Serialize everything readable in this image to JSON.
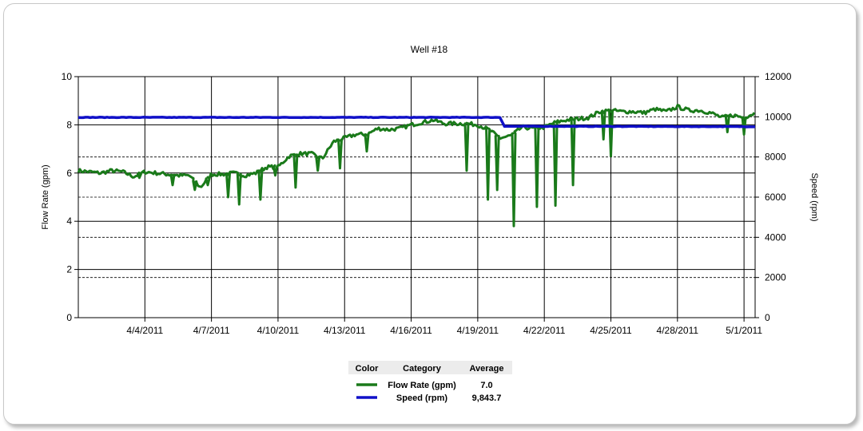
{
  "chart_data": {
    "type": "line",
    "title": "Well #18",
    "y_left": {
      "label": "Flow Rate (gpm)",
      "range": [
        0,
        10
      ],
      "ticks": [
        0,
        2,
        4,
        6,
        8,
        10
      ]
    },
    "y_right": {
      "label": "Speed (rpm)",
      "range": [
        0,
        12000
      ],
      "ticks": [
        0,
        2000,
        4000,
        6000,
        8000,
        10000,
        12000
      ],
      "tick_labels": [
        "0",
        "2000",
        "4000",
        "6000",
        "8000",
        "10000",
        "12000"
      ]
    },
    "x_axis": {
      "range": [
        "2011-04-01",
        "2011-05-01T12:00"
      ],
      "ticks": [
        "2011-04-04",
        "2011-04-07",
        "2011-04-10",
        "2011-04-13",
        "2011-04-16",
        "2011-04-19",
        "2011-04-22",
        "2011-04-25",
        "2011-04-28",
        "2011-05-01"
      ],
      "tick_labels": [
        "4/4/2011",
        "4/7/2011",
        "4/10/2011",
        "4/13/2011",
        "4/16/2011",
        "4/19/2011",
        "4/22/2011",
        "4/25/2011",
        "4/28/2011",
        "5/1/2011"
      ]
    },
    "gridlines": "solid at left-axis ticks, dashed at right-axis ticks, solid vertical at date ticks",
    "series": [
      {
        "name": "Flow Rate (gpm)",
        "axis": "left",
        "color": "#1a7a1a",
        "points": [
          [
            "2011-04-01",
            6.1
          ],
          [
            "2011-04-02",
            6.0
          ],
          [
            "2011-04-02T12:00",
            6.1
          ],
          [
            "2011-04-03",
            6.05
          ],
          [
            "2011-04-03T12:00",
            5.85
          ],
          [
            "2011-04-04",
            6.05
          ],
          [
            "2011-04-04T12:00",
            6.0
          ],
          [
            "2011-04-05",
            5.95
          ],
          [
            "2011-04-05T12:00",
            5.9
          ],
          [
            "2011-04-06",
            5.9
          ],
          [
            "2011-04-06T12:00",
            5.4
          ],
          [
            "2011-04-07",
            5.95
          ],
          [
            "2011-04-07T12:00",
            5.95
          ],
          [
            "2011-04-08",
            6.0
          ],
          [
            "2011-04-08T12:00",
            5.9
          ],
          [
            "2011-04-09",
            6.0
          ],
          [
            "2011-04-09T12:00",
            6.25
          ],
          [
            "2011-04-10",
            6.25
          ],
          [
            "2011-04-10T12:00",
            6.7
          ],
          [
            "2011-04-11",
            6.8
          ],
          [
            "2011-04-11T12:00",
            6.8
          ],
          [
            "2011-04-12",
            6.6
          ],
          [
            "2011-04-12T12:00",
            7.3
          ],
          [
            "2011-04-13",
            7.45
          ],
          [
            "2011-04-13T12:00",
            7.6
          ],
          [
            "2011-04-14",
            7.6
          ],
          [
            "2011-04-14T12:00",
            7.85
          ],
          [
            "2011-04-15",
            7.8
          ],
          [
            "2011-04-15T12:00",
            7.85
          ],
          [
            "2011-04-16",
            8.0
          ],
          [
            "2011-04-16T12:00",
            8.1
          ],
          [
            "2011-04-17",
            8.2
          ],
          [
            "2011-04-17T12:00",
            8.05
          ],
          [
            "2011-04-18",
            8.05
          ],
          [
            "2011-04-18T12:00",
            8.05
          ],
          [
            "2011-04-19",
            8.0
          ],
          [
            "2011-04-19T12:00",
            7.8
          ],
          [
            "2011-04-20",
            7.45
          ],
          [
            "2011-04-20T12:00",
            7.55
          ],
          [
            "2011-04-21",
            7.9
          ],
          [
            "2011-04-21T12:00",
            7.85
          ],
          [
            "2011-04-22",
            7.9
          ],
          [
            "2011-04-22T12:00",
            8.1
          ],
          [
            "2011-04-23",
            8.2
          ],
          [
            "2011-04-23T12:00",
            8.25
          ],
          [
            "2011-04-24",
            8.3
          ],
          [
            "2011-04-24T12:00",
            8.55
          ],
          [
            "2011-04-25",
            8.6
          ],
          [
            "2011-04-25T12:00",
            8.55
          ],
          [
            "2011-04-26",
            8.55
          ],
          [
            "2011-04-26T12:00",
            8.5
          ],
          [
            "2011-04-27",
            8.65
          ],
          [
            "2011-04-27T12:00",
            8.55
          ],
          [
            "2011-04-28",
            8.75
          ],
          [
            "2011-04-28T12:00",
            8.6
          ],
          [
            "2011-04-29",
            8.6
          ],
          [
            "2011-04-29T12:00",
            8.5
          ],
          [
            "2011-04-30",
            8.3
          ],
          [
            "2011-04-30T12:00",
            8.4
          ],
          [
            "2011-05-01",
            8.3
          ],
          [
            "2011-05-01T12:00",
            8.5
          ]
        ],
        "dips": [
          [
            "2011-04-03T18:00",
            5.8
          ],
          [
            "2011-04-05T06:00",
            5.5
          ],
          [
            "2011-04-06T06:00",
            5.3
          ],
          [
            "2011-04-06T20:00",
            5.5
          ],
          [
            "2011-04-07T18:00",
            5.0
          ],
          [
            "2011-04-08T06:00",
            4.7
          ],
          [
            "2011-04-09T05:00",
            4.9
          ],
          [
            "2011-04-09T21:00",
            5.9
          ],
          [
            "2011-04-10T19:00",
            5.4
          ],
          [
            "2011-04-11T19:00",
            6.1
          ],
          [
            "2011-04-12T19:00",
            6.2
          ],
          [
            "2011-04-14T00:00",
            6.9
          ],
          [
            "2011-04-18T12:00",
            6.1
          ],
          [
            "2011-04-19T11:00",
            4.9
          ],
          [
            "2011-04-19T21:00",
            5.3
          ],
          [
            "2011-04-20T15:00",
            3.8
          ],
          [
            "2011-04-21T16:00",
            4.6
          ],
          [
            "2011-04-22T12:00",
            4.65
          ],
          [
            "2011-04-23T07:00",
            5.5
          ],
          [
            "2011-04-24T16:00",
            7.4
          ],
          [
            "2011-04-25T00:00",
            6.7
          ],
          [
            "2011-04-30T06:00",
            7.7
          ],
          [
            "2011-05-01T00:00",
            7.6
          ]
        ]
      },
      {
        "name": "Speed (rpm)",
        "axis": "right",
        "color": "#1010c8",
        "points": [
          [
            "2011-04-01",
            9970
          ],
          [
            "2011-04-20",
            9970
          ],
          [
            "2011-04-20T05:00",
            9530
          ],
          [
            "2011-05-01T12:00",
            9510
          ]
        ]
      }
    ],
    "legend": {
      "placement": "bottom-center",
      "headers": [
        "Color",
        "Category",
        "Average"
      ],
      "rows": [
        {
          "category": "Flow Rate (gpm)",
          "average": "7.0",
          "color": "#1a7a1a"
        },
        {
          "category": "Speed (rpm)",
          "average": "9,843.7",
          "color": "#1010c8"
        }
      ]
    }
  }
}
